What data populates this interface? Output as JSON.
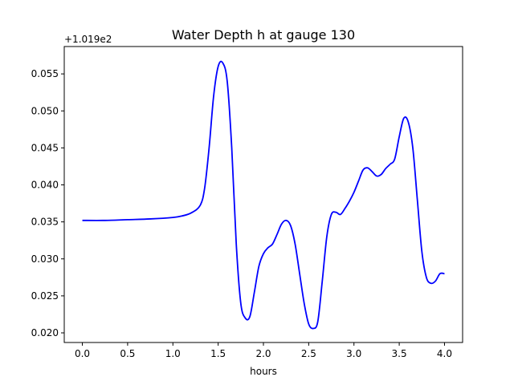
{
  "chart_data": {
    "type": "line",
    "title": "Water Depth h at gauge 130",
    "xlabel": "hours",
    "ylabel": "",
    "y_offset_label": "+1.019e2",
    "xlim": [
      -0.2,
      4.2
    ],
    "ylim": [
      0.0187,
      0.0587
    ],
    "xticks": [
      0.0,
      0.5,
      1.0,
      1.5,
      2.0,
      2.5,
      3.0,
      3.5,
      4.0
    ],
    "xtick_labels": [
      "0.0",
      "0.5",
      "1.0",
      "1.5",
      "2.0",
      "2.5",
      "3.0",
      "3.5",
      "4.0"
    ],
    "yticks": [
      0.02,
      0.025,
      0.03,
      0.035,
      0.04,
      0.045,
      0.05,
      0.055
    ],
    "ytick_labels": [
      "0.020",
      "0.025",
      "0.030",
      "0.035",
      "0.040",
      "0.045",
      "0.050",
      "0.055"
    ],
    "grid": false,
    "series": [
      {
        "color": "#0000ff",
        "x": [
          0.0,
          0.25,
          0.5,
          0.75,
          1.0,
          1.1,
          1.2,
          1.3,
          1.35,
          1.4,
          1.45,
          1.5,
          1.55,
          1.6,
          1.65,
          1.7,
          1.75,
          1.8,
          1.85,
          1.9,
          1.95,
          2.0,
          2.05,
          2.1,
          2.15,
          2.2,
          2.25,
          2.3,
          2.35,
          2.4,
          2.45,
          2.5,
          2.55,
          2.6,
          2.65,
          2.7,
          2.75,
          2.8,
          2.85,
          2.9,
          2.95,
          3.0,
          3.05,
          3.1,
          3.15,
          3.2,
          3.25,
          3.3,
          3.35,
          3.4,
          3.45,
          3.5,
          3.55,
          3.6,
          3.65,
          3.7,
          3.75,
          3.8,
          3.85,
          3.9,
          3.95,
          4.0
        ],
        "values": [
          0.0352,
          0.0352,
          0.0353,
          0.0354,
          0.0356,
          0.0358,
          0.0362,
          0.0372,
          0.0395,
          0.045,
          0.052,
          0.056,
          0.0565,
          0.054,
          0.045,
          0.032,
          0.024,
          0.022,
          0.0222,
          0.0255,
          0.029,
          0.0307,
          0.0315,
          0.032,
          0.0333,
          0.0347,
          0.0352,
          0.0345,
          0.032,
          0.028,
          0.024,
          0.0212,
          0.0206,
          0.0215,
          0.027,
          0.033,
          0.036,
          0.0363,
          0.036,
          0.0368,
          0.0378,
          0.039,
          0.0405,
          0.042,
          0.0423,
          0.0418,
          0.0412,
          0.0414,
          0.0422,
          0.0428,
          0.0435,
          0.0465,
          0.049,
          0.0485,
          0.045,
          0.038,
          0.031,
          0.0275,
          0.0267,
          0.027,
          0.028,
          0.028
        ]
      }
    ]
  }
}
